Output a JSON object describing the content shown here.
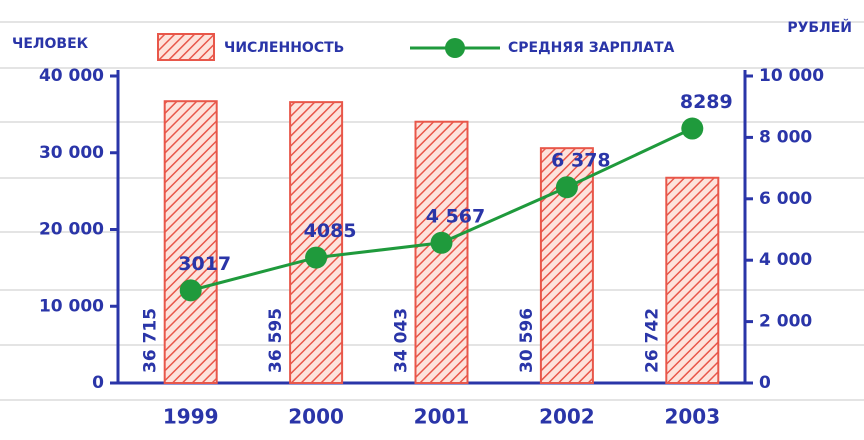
{
  "chart_data": {
    "type": "combo",
    "ylabel": "ЧЕЛОВЕК",
    "y2label": "РУБЛЕЙ",
    "categories": [
      "1999",
      "2000",
      "2001",
      "2002",
      "2003"
    ],
    "series": [
      {
        "name": "ЧИСЛЕННОСТЬ",
        "type": "bar",
        "color": "#e8574a",
        "values": [
          36715,
          36595,
          34043,
          30596,
          26742
        ],
        "value_labels": [
          "36 715",
          "36 595",
          "34 043",
          "30 596",
          "26 742"
        ]
      },
      {
        "name": "СРЕДНЯЯ ЗАРПЛАТА",
        "type": "line",
        "axis": "y2",
        "color": "#1f9a3c",
        "values": [
          3017,
          4085,
          4567,
          6378,
          8289
        ],
        "value_labels": [
          "3017",
          "4085",
          "4 567",
          "6 378",
          "8289"
        ]
      }
    ],
    "ylim": [
      0,
      40000
    ],
    "yticks": [
      0,
      {
        "value": 10000,
        "label": "10 000"
      },
      {
        "value": 20000,
        "label": "20 000"
      },
      {
        "value": 30000,
        "label": "30 000"
      },
      {
        "value": 40000,
        "label": "40 000"
      }
    ],
    "y2lim": [
      0,
      10000
    ],
    "y2ticks": [
      0,
      {
        "value": 2000,
        "label": "2 000"
      },
      {
        "value": 4000,
        "label": "4 000"
      },
      {
        "value": 6000,
        "label": "6 000"
      },
      {
        "value": 8000,
        "label": "8 000"
      },
      {
        "value": 10000,
        "label": "10 000"
      }
    ]
  }
}
